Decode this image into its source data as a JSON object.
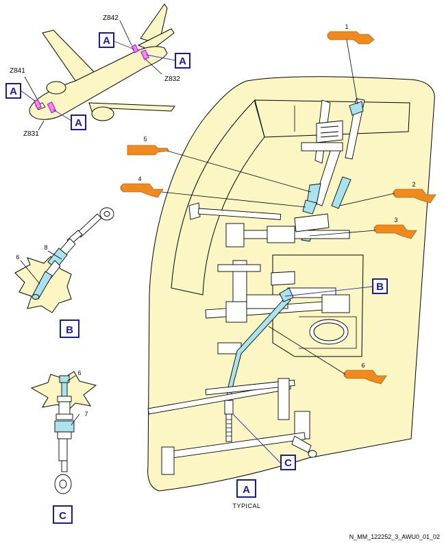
{
  "zones": {
    "z842": "Z842",
    "z841": "Z841",
    "z832": "Z832",
    "z831": "Z831"
  },
  "view_letters": {
    "a": "A",
    "b": "B",
    "c": "C"
  },
  "caption_typical": "TYPICAL",
  "item_numbers": {
    "n1": "1",
    "n2": "2",
    "n3": "3",
    "n4": "4",
    "n5": "5",
    "n6": "6",
    "n7": "7",
    "n8": "8"
  },
  "footer_ref": "N_MM_122252_3_AWU0_01_02",
  "colors": {
    "door_fill": "#fbf6c4",
    "highlight": "#a9e4ee",
    "tag_orange": "#f08a1c",
    "box_blue": "#1a1aa0",
    "zone_magenta": "#f28af0"
  }
}
